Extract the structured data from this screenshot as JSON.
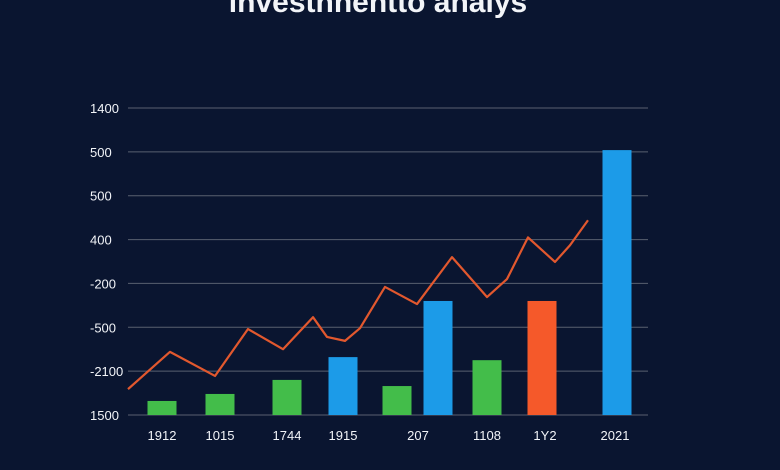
{
  "chart_data": {
    "type": "bar",
    "title": "lnvestnnentto analys",
    "categories": [
      "1912",
      "1015",
      "1744",
      "1915",
      "207",
      null,
      "1108",
      "1Y2",
      "2021"
    ],
    "values": [
      0.32,
      0.48,
      0.8,
      1.32,
      0.66,
      2.6,
      1.25,
      2.6,
      6.04
    ],
    "colors": [
      "#43bd4a",
      "#43bd4a",
      "#43bd4a",
      "#1c9be8",
      "#43bd4a",
      "#1c9be8",
      "#43bd4a",
      "#f5592a",
      "#1c9be8"
    ],
    "line": {
      "color": "#e2582e",
      "values": [
        0.59,
        1.44,
        0.89,
        1.96,
        1.5,
        2.23,
        1.78,
        1.69,
        1.98,
        2.92,
        2.53,
        3.6,
        2.69,
        3.1,
        4.05,
        3.49,
        3.87,
        4.44
      ]
    },
    "ylim": [
      0,
      7
    ],
    "yticks": [
      0,
      1,
      2,
      3,
      4,
      5,
      6,
      7
    ],
    "y_labels": [
      "1500",
      "-2100",
      "-500",
      "-200",
      "400",
      "500",
      "500",
      "1400"
    ],
    "grid": true
  }
}
